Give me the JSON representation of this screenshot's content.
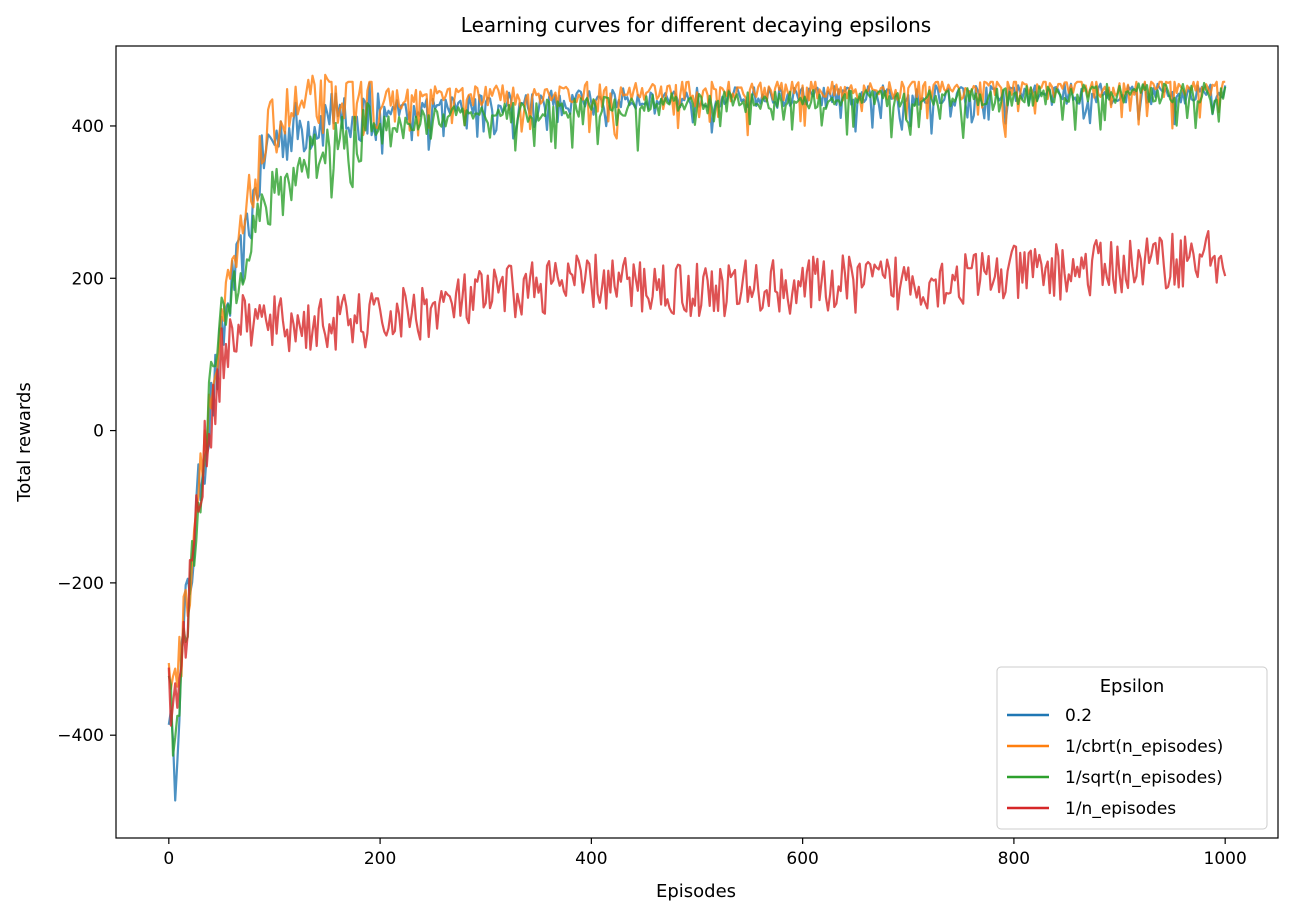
{
  "chart_data": {
    "type": "line",
    "title": "Learning curves for different decaying epsilons",
    "xlabel": "Episodes",
    "ylabel": "Total rewards",
    "xlim": [
      -50,
      1050
    ],
    "ylim": [
      -535,
      505
    ],
    "xticks": [
      0,
      200,
      400,
      600,
      800,
      1000
    ],
    "yticks": [
      -400,
      -200,
      0,
      200,
      400
    ],
    "xtick_labels": [
      "0",
      "200",
      "400",
      "600",
      "800",
      "1000"
    ],
    "ytick_labels": [
      "−400",
      "−200",
      "0",
      "200",
      "400"
    ],
    "grid": false,
    "legend": {
      "title": "Epsilon",
      "position": "lower-right"
    },
    "series": [
      {
        "name": "0.2",
        "color": "#1f77b4",
        "x": [
          0,
          5,
          10,
          15,
          20,
          25,
          30,
          35,
          40,
          45,
          50,
          55,
          60,
          65,
          70,
          75,
          80,
          85,
          90,
          95,
          100,
          110,
          120,
          130,
          140,
          150,
          175,
          200,
          250,
          300,
          350,
          400,
          500,
          600,
          700,
          800,
          900,
          1000
        ],
        "y": [
          -350,
          -470,
          -340,
          -250,
          -200,
          -130,
          -60,
          -20,
          30,
          70,
          110,
          160,
          190,
          210,
          230,
          260,
          300,
          330,
          360,
          375,
          385,
          390,
          395,
          400,
          405,
          410,
          415,
          420,
          425,
          430,
          432,
          435,
          437,
          438,
          440,
          441,
          442,
          443
        ]
      },
      {
        "name": "1/cbrt(n_episodes)",
        "color": "#ff7f0e",
        "x": [
          0,
          5,
          10,
          15,
          20,
          25,
          30,
          35,
          40,
          45,
          50,
          55,
          60,
          65,
          70,
          75,
          80,
          85,
          90,
          95,
          100,
          110,
          120,
          130,
          140,
          150,
          175,
          200,
          250,
          300,
          350,
          400,
          500,
          600,
          700,
          800,
          900,
          1000
        ],
        "y": [
          -330,
          -300,
          -310,
          -240,
          -190,
          -110,
          -40,
          10,
          40,
          80,
          120,
          170,
          200,
          230,
          260,
          290,
          320,
          345,
          370,
          390,
          400,
          415,
          420,
          425,
          428,
          430,
          433,
          435,
          438,
          440,
          442,
          444,
          446,
          447,
          448,
          449,
          450,
          452
        ]
      },
      {
        "name": "1/sqrt(n_episodes)",
        "color": "#2ca02c",
        "x": [
          0,
          5,
          10,
          15,
          20,
          25,
          30,
          35,
          40,
          45,
          50,
          55,
          60,
          65,
          70,
          75,
          80,
          85,
          90,
          95,
          100,
          110,
          120,
          130,
          140,
          150,
          175,
          200,
          250,
          300,
          350,
          400,
          500,
          600,
          700,
          800,
          900,
          1000
        ],
        "y": [
          -320,
          -420,
          -360,
          -260,
          -220,
          -140,
          -70,
          0,
          60,
          100,
          130,
          160,
          180,
          210,
          230,
          250,
          265,
          275,
          285,
          295,
          305,
          320,
          340,
          355,
          365,
          375,
          390,
          400,
          410,
          415,
          420,
          425,
          430,
          435,
          437,
          440,
          442,
          444
        ]
      },
      {
        "name": "1/n_episodes",
        "color": "#d62728",
        "x": [
          0,
          5,
          10,
          15,
          20,
          25,
          30,
          35,
          40,
          45,
          50,
          55,
          60,
          65,
          70,
          75,
          80,
          90,
          100,
          120,
          150,
          200,
          250,
          300,
          350,
          400,
          500,
          600,
          700,
          800,
          900,
          950,
          1000
        ],
        "y": [
          -340,
          -380,
          -330,
          -280,
          -200,
          -130,
          -70,
          -20,
          20,
          60,
          90,
          110,
          125,
          135,
          140,
          145,
          145,
          140,
          140,
          138,
          140,
          145,
          160,
          175,
          190,
          195,
          185,
          190,
          195,
          205,
          215,
          225,
          230
        ]
      }
    ]
  }
}
